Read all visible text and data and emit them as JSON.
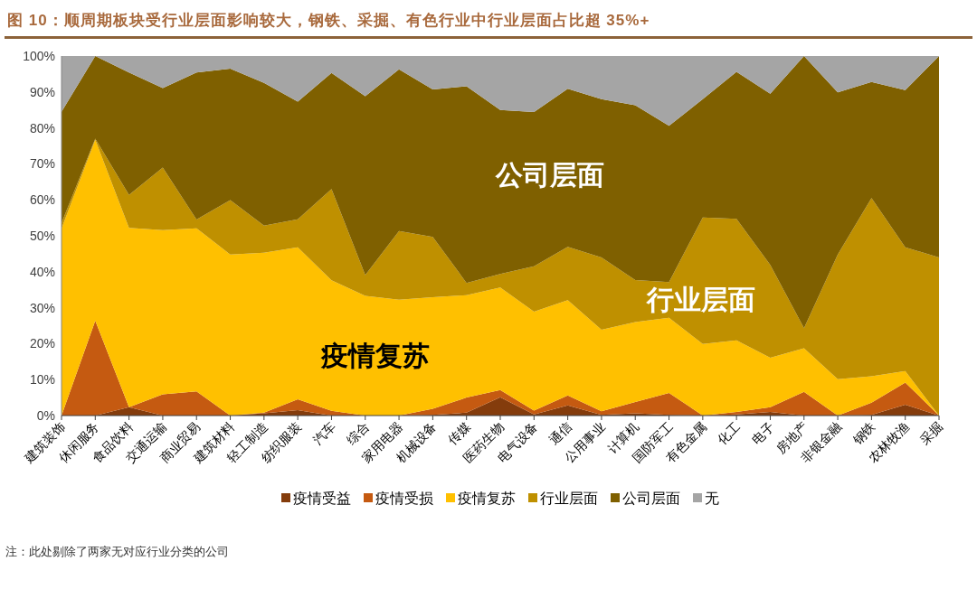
{
  "chart_data": {
    "type": "area",
    "stacked": true,
    "title": "图 10：顺周期板块受行业层面影响较大，钢铁、采掘、有色行业中行业层面占比超 35%+",
    "categories": [
      "建筑装饰",
      "休闲服务",
      "食品饮料",
      "交通运输",
      "商业贸易",
      "建筑材料",
      "轻工制造",
      "纺织服装",
      "汽车",
      "综合",
      "家用电器",
      "机械设备",
      "传媒",
      "医药生物",
      "电气设备",
      "通信",
      "公用事业",
      "计算机",
      "国防军工",
      "有色金属",
      "化工",
      "电子",
      "房地产",
      "非银金融",
      "钢铁",
      "农林牧渔",
      "采掘"
    ],
    "series": [
      {
        "name": "疫情受益",
        "color": "#843c0c",
        "values": [
          0,
          0,
          2.3,
          0,
          0,
          0,
          0.6,
          1.5,
          0,
          0,
          0,
          0.2,
          0.8,
          5.1,
          0.3,
          2.8,
          0.2,
          0.6,
          0.2,
          0,
          0.3,
          1.0,
          0,
          0,
          0.2,
          3.0,
          0
        ]
      },
      {
        "name": "疫情受损",
        "color": "#c55a11",
        "values": [
          0,
          26.4,
          0,
          5.9,
          6.7,
          0,
          0.2,
          3.0,
          1.3,
          0,
          0,
          1.7,
          4.2,
          2.0,
          1.1,
          2.8,
          1.0,
          3.2,
          6.1,
          0,
          0.7,
          1.3,
          6.6,
          0,
          3.4,
          6.2,
          0
        ]
      },
      {
        "name": "疫情复苏",
        "color": "#ffc000",
        "values": [
          52,
          50.3,
          49.9,
          45.7,
          45.4,
          44.8,
          44.5,
          42.3,
          36.3,
          33.3,
          32.2,
          31.0,
          28.5,
          28.5,
          27.5,
          26.5,
          22.7,
          22.2,
          20.9,
          19.9,
          19.9,
          13.8,
          12.1,
          10.1,
          7.3,
          3.2,
          0
        ]
      },
      {
        "name": "行业层面",
        "color": "#bf9000",
        "values": [
          1.5,
          0.3,
          9.2,
          17.4,
          2.4,
          15.1,
          7.5,
          7.8,
          25.4,
          5.8,
          19.1,
          16.8,
          3.4,
          3.8,
          12.6,
          14.8,
          20.1,
          11.7,
          9.9,
          35.2,
          33.8,
          25.8,
          5.6,
          34.7,
          49.6,
          34.4,
          44.0
        ]
      },
      {
        "name": "公司层面",
        "color": "#7f6000",
        "values": [
          31,
          23.0,
          34.0,
          22.1,
          40.9,
          36.6,
          39.7,
          32.7,
          32.3,
          49.7,
          45.0,
          41.0,
          54.7,
          45.6,
          42.9,
          44.0,
          44.0,
          48.6,
          43.5,
          32.9,
          40.9,
          47.6,
          75.7,
          45.1,
          32.3,
          43.7,
          56.0
        ]
      },
      {
        "name": "无",
        "color": "#a5a5a5",
        "values": [
          15.5,
          0,
          4.6,
          8.9,
          4.6,
          3.5,
          7.5,
          12.7,
          4.7,
          11.2,
          3.7,
          9.3,
          8.4,
          15.0,
          15.6,
          9.1,
          12.0,
          13.7,
          19.4,
          12.0,
          4.4,
          10.5,
          0,
          10.1,
          7.2,
          9.5,
          0
        ]
      }
    ],
    "ylim": [
      0,
      100
    ],
    "yticks": [
      {
        "value": 0,
        "label": "0%"
      },
      {
        "value": 10,
        "label": "10%"
      },
      {
        "value": 20,
        "label": "20%"
      },
      {
        "value": 30,
        "label": "30%"
      },
      {
        "value": 40,
        "label": "40%"
      },
      {
        "value": 50,
        "label": "50%"
      },
      {
        "value": 60,
        "label": "60%"
      },
      {
        "value": 70,
        "label": "70%"
      },
      {
        "value": 80,
        "label": "80%"
      },
      {
        "value": 90,
        "label": "90%"
      },
      {
        "value": 100,
        "label": "100%"
      }
    ],
    "legend": "bottom",
    "annotations": [
      "公司层面",
      "行业层面",
      "疫情复苏",
      "注：此处剔除了两家无对应行业分类的公司"
    ]
  }
}
